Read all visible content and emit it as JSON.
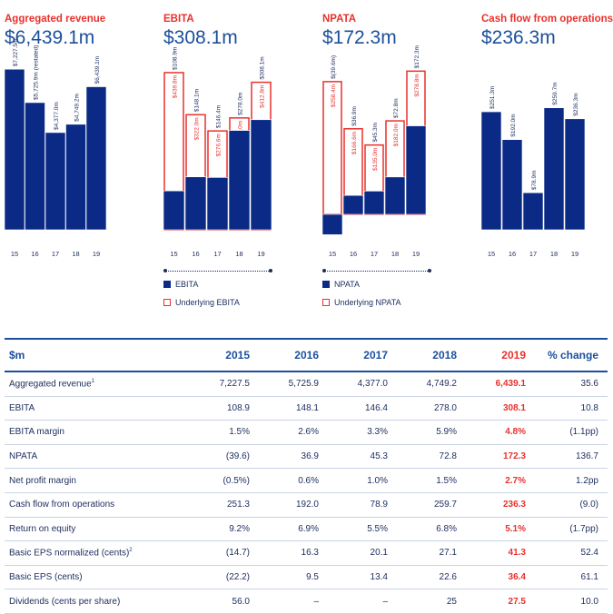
{
  "colors": {
    "bar": "#0a2a86",
    "outline": "#e8312c",
    "title": "#e8312c",
    "value": "#1b4f9c",
    "text": "#1c2d5e"
  },
  "chart_data": [
    {
      "type": "bar",
      "title": "Aggregated revenue",
      "headline": "$6,439.1m",
      "categories": [
        "15",
        "16",
        "17",
        "18",
        "19"
      ],
      "series": [
        {
          "values": [
            7227.5,
            5725.9,
            4377.0,
            4749.2,
            6439.1
          ]
        }
      ],
      "data_labels": [
        "$7,227.5m",
        "$5,725.9m (restated)",
        "$4,377.0m",
        "$4,749.2m",
        "$6,439.1m"
      ],
      "ylim": [
        0,
        7400
      ]
    },
    {
      "type": "bar",
      "title": "EBITA",
      "headline": "$308.1m",
      "categories": [
        "15",
        "16",
        "17",
        "18",
        "19"
      ],
      "series": [
        {
          "name": "EBITA",
          "values": [
            108.9,
            148.1,
            146.4,
            278.0,
            308.1
          ]
        },
        {
          "name": "Underlying EBITA",
          "values": [
            439.8,
            322.0,
            276.6,
            313.0,
            412.8
          ]
        }
      ],
      "data_labels": {
        "EBITA": [
          "$108.9m",
          "$148.1m",
          "$146.4m",
          "$278.0m",
          "$308.1m"
        ],
        "Underlying EBITA": [
          "$439.8m",
          "$322.0m",
          "$276.6m",
          "$313.0m",
          "$412.8m"
        ]
      },
      "ylim": [
        0,
        460
      ]
    },
    {
      "type": "bar",
      "title": "NPATA",
      "headline": "$172.3m",
      "categories": [
        "15",
        "16",
        "17",
        "18",
        "19"
      ],
      "series": [
        {
          "name": "NPATA",
          "values": [
            -39.6,
            36.9,
            45.3,
            72.8,
            172.3
          ]
        },
        {
          "name": "Underlying NPATA",
          "values": [
            258.4,
            166.6,
            135.0,
            182.0,
            278.8
          ]
        }
      ],
      "data_labels": {
        "NPATA": [
          "$(39.6m)",
          "$36.9m",
          "$45.3m",
          "$72.8m",
          "$172.3m"
        ],
        "Underlying NPATA": [
          "$258.4m",
          "$166.6m",
          "$135.0m",
          "$182.0m",
          "$278.8m"
        ]
      },
      "ylim": [
        -40,
        290
      ]
    },
    {
      "type": "bar",
      "title": "Cash flow from operations",
      "headline": "$236.3m",
      "categories": [
        "15",
        "16",
        "17",
        "18",
        "19"
      ],
      "series": [
        {
          "values": [
            251.3,
            192.0,
            78.9,
            259.7,
            236.3
          ]
        }
      ],
      "data_labels": [
        "$251.3m",
        "$192.0m",
        "$78.9m",
        "$259.7m",
        "$236.3m"
      ],
      "ylim": [
        0,
        350
      ]
    },
    {
      "type": "table",
      "columns": [
        "$m",
        "2015",
        "2016",
        "2017",
        "2018",
        "2019",
        "% change"
      ],
      "highlight_column": "2019",
      "rows": [
        [
          "Aggregated revenue",
          "7,227.5",
          "5,725.9",
          "4,377.0",
          "4,749.2",
          "6,439.1",
          "35.6"
        ],
        [
          "EBITA",
          "108.9",
          "148.1",
          "146.4",
          "278.0",
          "308.1",
          "10.8"
        ],
        [
          "EBITA margin",
          "1.5%",
          "2.6%",
          "3.3%",
          "5.9%",
          "4.8%",
          "(1.1pp)"
        ],
        [
          "NPATA",
          "(39.6)",
          "36.9",
          "45.3",
          "72.8",
          "172.3",
          "136.7"
        ],
        [
          "Net profit margin",
          "(0.5%)",
          "0.6%",
          "1.0%",
          "1.5%",
          "2.7%",
          "1.2pp"
        ],
        [
          "Cash flow from operations",
          "251.3",
          "192.0",
          "78.9",
          "259.7",
          "236.3",
          "(9.0)"
        ],
        [
          "Return on equity",
          "9.2%",
          "6.9%",
          "5.5%",
          "6.8%",
          "5.1%",
          "(1.7pp)"
        ],
        [
          "Basic EPS normalized (cents)",
          "(14.7)",
          "16.3",
          "20.1",
          "27.1",
          "41.3",
          "52.4"
        ],
        [
          "Basic EPS (cents)",
          "(22.2)",
          "9.5",
          "13.4",
          "22.6",
          "36.4",
          "61.1"
        ],
        [
          "Dividends (cents per share)",
          "56.0",
          "–",
          "–",
          "25",
          "27.5",
          "10.0"
        ]
      ],
      "footnote_marks": {
        "0": "1",
        "7": "2"
      }
    }
  ],
  "legends": {
    "ebita": [
      {
        "label": "EBITA",
        "style": "fill"
      },
      {
        "label": "Underlying EBITA",
        "style": "outline"
      }
    ],
    "npata": [
      {
        "label": "NPATA",
        "style": "fill"
      },
      {
        "label": "Underlying NPATA",
        "style": "outline"
      }
    ]
  }
}
